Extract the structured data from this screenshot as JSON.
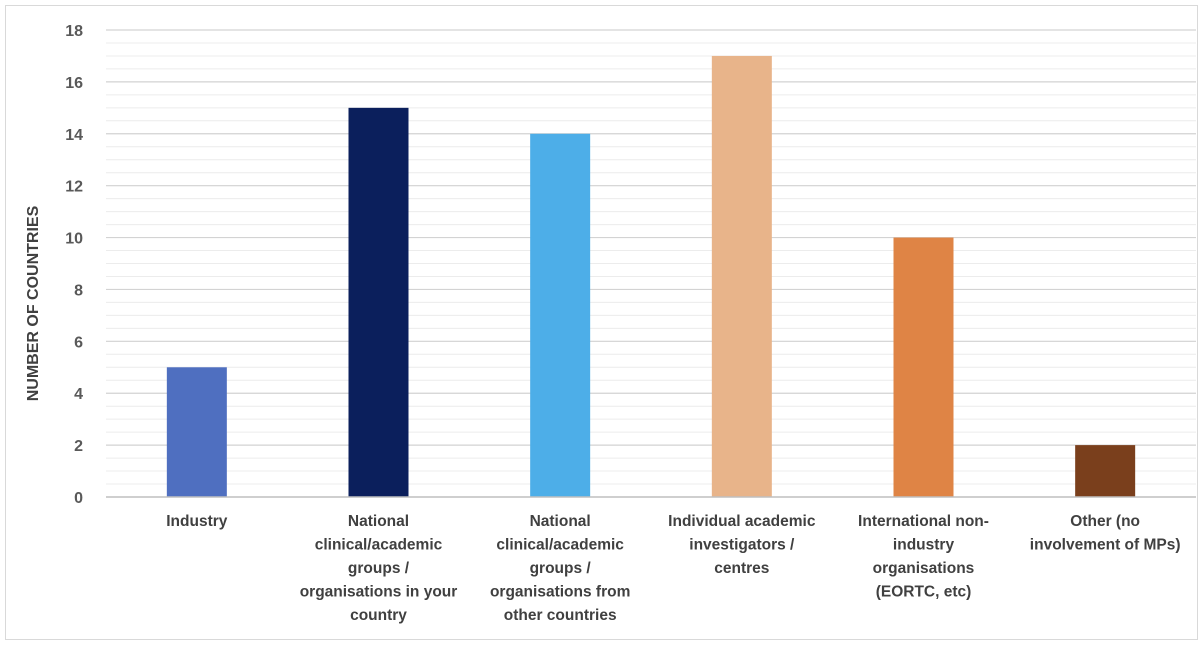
{
  "chart_data": {
    "type": "bar",
    "title": "",
    "xlabel": "",
    "ylabel": "NUMBER OF COUNTRIES",
    "ylim": [
      0,
      18
    ],
    "major_tick_step": 2,
    "minor_tick_step": 0.5,
    "grid": true,
    "legend": "none",
    "categories": [
      "Industry",
      "National clinical/academic groups / organisations in your country",
      "National clinical/academic groups / organisations from other countries",
      "Individual academic investigators / centres",
      "International non-industry organisations (EORTC, etc)",
      "Other (no involvement of MPs)"
    ],
    "category_lines": [
      [
        "Industry"
      ],
      [
        "National",
        "clinical/academic",
        "groups /",
        "organisations in your",
        "country"
      ],
      [
        "National",
        "clinical/academic",
        "groups /",
        "organisations from",
        "other countries"
      ],
      [
        "Individual academic",
        "investigators /",
        "centres"
      ],
      [
        "International non-",
        "industry",
        "organisations",
        "(EORTC, etc)"
      ],
      [
        "Other (no",
        "involvement of MPs)"
      ]
    ],
    "values": [
      5,
      15,
      14,
      17,
      10,
      2
    ],
    "colors": [
      "#4f6fc0",
      "#0b1f5c",
      "#4daee8",
      "#e8b48a",
      "#df8445",
      "#7a3f1c"
    ],
    "y_tick_labels": [
      "0",
      "2",
      "4",
      "6",
      "8",
      "10",
      "12",
      "14",
      "16",
      "18"
    ]
  }
}
